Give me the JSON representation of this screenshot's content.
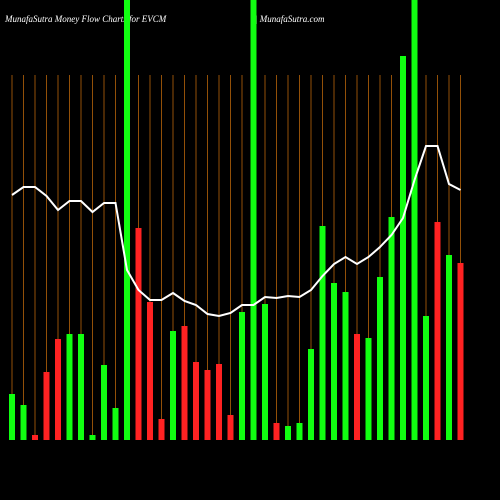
{
  "chart_data": {
    "type": "bar",
    "title": "MunafaSutra  Money Flow  Charts for EVCM",
    "site": "| MunafaSutra.com",
    "categories": [
      null,
      null,
      null,
      null,
      null,
      null,
      null,
      null,
      null,
      null,
      null,
      null,
      null,
      null,
      null,
      null,
      null,
      null,
      null,
      null,
      null,
      null,
      null,
      null,
      null,
      null,
      null,
      null,
      null,
      null,
      null,
      null,
      null,
      null,
      null,
      null,
      null,
      null,
      null,
      null
    ],
    "values": [
      46,
      35,
      5,
      68,
      101,
      106,
      106,
      5,
      75,
      32,
      440,
      212,
      138,
      21,
      109,
      114,
      78,
      70,
      76,
      25,
      128,
      440,
      136,
      17,
      14,
      17,
      91,
      214,
      157,
      148,
      106,
      102,
      163,
      223,
      384,
      440,
      124,
      218,
      185,
      177
    ],
    "colors": [
      "#1f1",
      "#1f1",
      "#f22",
      "#f22",
      "#f22",
      "#1f1",
      "#1f1",
      "#1f1",
      "#1f1",
      "#1f1",
      "#1f1",
      "#f22",
      "#f22",
      "#f22",
      "#1f1",
      "#f22",
      "#f22",
      "#f22",
      "#f22",
      "#f22",
      "#1f1",
      "#1f1",
      "#1f1",
      "#f22",
      "#1f1",
      "#1f1",
      "#1f1",
      "#1f1",
      "#1f1",
      "#1f1",
      "#f22",
      "#1f1",
      "#1f1",
      "#1f1",
      "#1f1",
      "#1f1",
      "#1f1",
      "#f22",
      "#1f1",
      "#f22"
    ],
    "line": {
      "color": "#ffffff",
      "values": [
        245,
        253,
        253,
        244,
        230,
        239,
        239,
        228,
        237,
        237,
        170,
        150,
        140,
        140,
        147,
        139,
        135,
        126,
        124,
        127,
        135,
        135,
        143,
        142,
        144,
        143,
        150,
        164,
        176,
        183,
        176,
        183,
        193,
        205,
        222,
        260,
        294,
        294,
        256,
        250
      ]
    },
    "ylim": [
      0,
      440
    ]
  }
}
